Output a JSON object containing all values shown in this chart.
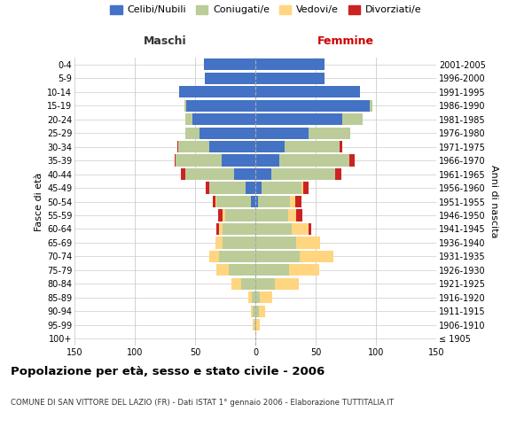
{
  "age_groups": [
    "100+",
    "95-99",
    "90-94",
    "85-89",
    "80-84",
    "75-79",
    "70-74",
    "65-69",
    "60-64",
    "55-59",
    "50-54",
    "45-49",
    "40-44",
    "35-39",
    "30-34",
    "25-29",
    "20-24",
    "15-19",
    "10-14",
    "5-9",
    "0-4"
  ],
  "birth_years": [
    "≤ 1905",
    "1906-1910",
    "1911-1915",
    "1916-1920",
    "1921-1925",
    "1926-1930",
    "1931-1935",
    "1936-1940",
    "1941-1945",
    "1946-1950",
    "1951-1955",
    "1956-1960",
    "1961-1965",
    "1966-1970",
    "1971-1975",
    "1976-1980",
    "1981-1985",
    "1986-1990",
    "1991-1995",
    "1996-2000",
    "2001-2005"
  ],
  "male": {
    "celibe": [
      0,
      0,
      0,
      0,
      0,
      0,
      0,
      0,
      0,
      0,
      4,
      8,
      18,
      28,
      38,
      46,
      52,
      57,
      63,
      42,
      43
    ],
    "coniugato": [
      0,
      1,
      2,
      3,
      12,
      22,
      30,
      27,
      27,
      25,
      28,
      30,
      40,
      38,
      26,
      12,
      6,
      2,
      0,
      0,
      0
    ],
    "vedovo": [
      0,
      1,
      2,
      3,
      8,
      10,
      8,
      6,
      3,
      2,
      1,
      0,
      0,
      0,
      0,
      0,
      0,
      0,
      0,
      0,
      0
    ],
    "divorziato": [
      0,
      0,
      0,
      0,
      0,
      0,
      0,
      0,
      2,
      4,
      2,
      3,
      4,
      1,
      1,
      0,
      0,
      0,
      0,
      0,
      0
    ]
  },
  "female": {
    "nubile": [
      0,
      0,
      0,
      0,
      0,
      0,
      0,
      0,
      0,
      0,
      2,
      5,
      13,
      20,
      24,
      44,
      72,
      95,
      87,
      57,
      57
    ],
    "coniugata": [
      0,
      1,
      3,
      4,
      16,
      28,
      37,
      34,
      30,
      27,
      27,
      33,
      53,
      58,
      46,
      35,
      17,
      2,
      0,
      0,
      0
    ],
    "vedova": [
      1,
      3,
      5,
      10,
      20,
      25,
      28,
      20,
      14,
      7,
      4,
      2,
      0,
      0,
      0,
      0,
      0,
      0,
      0,
      0,
      0
    ],
    "divorziata": [
      0,
      0,
      0,
      0,
      0,
      0,
      0,
      0,
      2,
      5,
      5,
      4,
      5,
      4,
      2,
      0,
      0,
      0,
      0,
      0,
      0
    ]
  },
  "colors": {
    "celibe": "#4472C4",
    "coniugato": "#BBCC99",
    "vedovo": "#FFD580",
    "divorziato": "#CC2222"
  },
  "title": "Popolazione per età, sesso e stato civile - 2006",
  "subtitle": "COMUNE DI SAN VITTORE DEL LAZIO (FR) - Dati ISTAT 1° gennaio 2006 - Elaborazione TUTTITALIA.IT",
  "xlabel_left": "Maschi",
  "xlabel_right": "Femmine",
  "ylabel_left": "Fasce di età",
  "ylabel_right": "Anni di nascita",
  "xlim": 150,
  "bg_color": "#ffffff",
  "grid_color": "#cccccc"
}
